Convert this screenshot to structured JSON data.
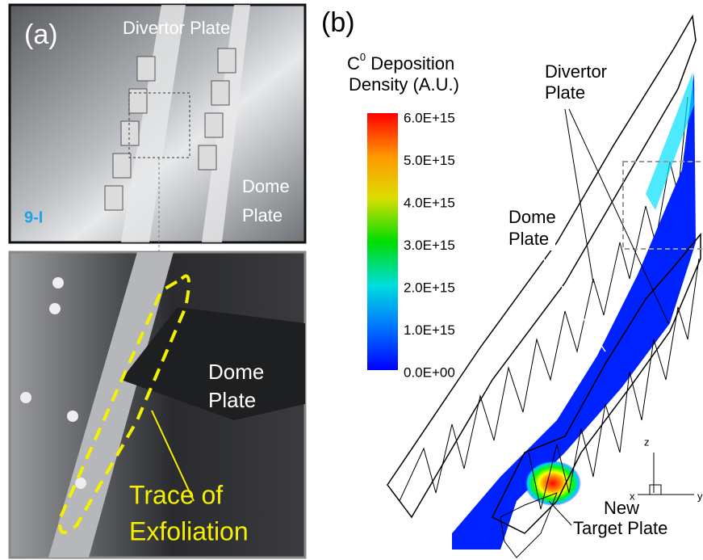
{
  "panel_a": {
    "label": "(a)",
    "top_photo": {
      "divertor_label": "Divertor Plate",
      "dome_label": [
        "Dome",
        "Plate"
      ],
      "code": "9-I"
    },
    "bottom_photo": {
      "dome_label": [
        "Dome",
        "Plate"
      ],
      "trace_label": [
        "Trace of",
        "Exfoliation"
      ]
    }
  },
  "panel_b": {
    "label": "(b)",
    "colorbar": {
      "title": {
        "base": "C",
        "superscript": "0",
        "rest": " Deposition",
        "line2": "Density (A.U.)"
      },
      "tick_labels": [
        "6.0E+15",
        "5.0E+15",
        "4.0E+15",
        "3.0E+15",
        "2.0E+15",
        "1.0E+15",
        "0.0E+00"
      ]
    },
    "divertor_label": [
      "Divertor",
      "Plate"
    ],
    "dome_label": [
      "Dome",
      "Plate"
    ],
    "target_label": [
      "New",
      "Target Plate"
    ],
    "axes": {
      "z": "z",
      "x": "x",
      "y": "y"
    }
  }
}
